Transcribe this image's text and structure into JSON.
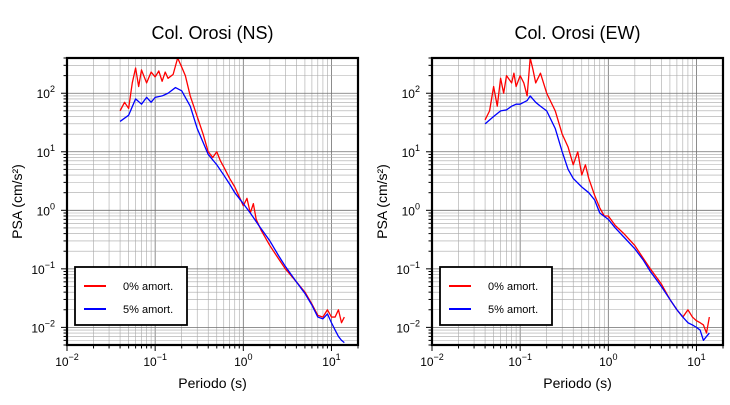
{
  "chart_data": [
    {
      "type": "line",
      "title": "Col. Orosi (NS)",
      "xlabel": "Periodo (s)",
      "ylabel": "PSA (cm/s²)",
      "x_scale": "log",
      "y_scale": "log",
      "xlim": [
        0.01,
        20
      ],
      "ylim": [
        0.005,
        400
      ],
      "x_ticks": [
        {
          "value": 0.01,
          "base": "10",
          "exp": "−2"
        },
        {
          "value": 0.1,
          "base": "10",
          "exp": "−1"
        },
        {
          "value": 1,
          "base": "10",
          "exp": "0"
        },
        {
          "value": 10,
          "base": "10",
          "exp": "1"
        }
      ],
      "y_ticks": [
        {
          "value": 0.01,
          "base": "10",
          "exp": "−2"
        },
        {
          "value": 0.1,
          "base": "10",
          "exp": "−1"
        },
        {
          "value": 1,
          "base": "10",
          "exp": "0"
        },
        {
          "value": 10,
          "base": "10",
          "exp": "1"
        },
        {
          "value": 100,
          "base": "10",
          "exp": "2"
        }
      ],
      "grid": true,
      "legend_position": "bottom-left",
      "series": [
        {
          "name": "0% amort.",
          "color": "#ff0000",
          "points": [
            [
              0.04,
              50
            ],
            [
              0.045,
              70
            ],
            [
              0.05,
              55
            ],
            [
              0.055,
              150
            ],
            [
              0.06,
              270
            ],
            [
              0.065,
              130
            ],
            [
              0.07,
              250
            ],
            [
              0.08,
              150
            ],
            [
              0.09,
              230
            ],
            [
              0.1,
              190
            ],
            [
              0.11,
              240
            ],
            [
              0.12,
              160
            ],
            [
              0.13,
              230
            ],
            [
              0.14,
              180
            ],
            [
              0.16,
              210
            ],
            [
              0.18,
              400
            ],
            [
              0.2,
              280
            ],
            [
              0.22,
              200
            ],
            [
              0.25,
              90
            ],
            [
              0.3,
              40
            ],
            [
              0.35,
              20
            ],
            [
              0.4,
              10
            ],
            [
              0.45,
              8
            ],
            [
              0.5,
              10
            ],
            [
              0.55,
              7
            ],
            [
              0.6,
              5.5
            ],
            [
              0.7,
              3.5
            ],
            [
              0.8,
              2.5
            ],
            [
              0.9,
              1.7
            ],
            [
              1.0,
              1.2
            ],
            [
              1.1,
              1.6
            ],
            [
              1.2,
              0.9
            ],
            [
              1.3,
              1.3
            ],
            [
              1.4,
              0.7
            ],
            [
              1.6,
              0.45
            ],
            [
              2.0,
              0.25
            ],
            [
              2.5,
              0.15
            ],
            [
              3.0,
              0.1
            ],
            [
              4.0,
              0.06
            ],
            [
              5.0,
              0.04
            ],
            [
              6.0,
              0.025
            ],
            [
              7.0,
              0.016
            ],
            [
              8.0,
              0.015
            ],
            [
              9.0,
              0.02
            ],
            [
              10,
              0.015
            ],
            [
              11,
              0.015
            ],
            [
              12,
              0.02
            ],
            [
              13,
              0.012
            ],
            [
              14,
              0.015
            ]
          ]
        },
        {
          "name": "5% amort.",
          "color": "#0000ff",
          "points": [
            [
              0.04,
              33
            ],
            [
              0.05,
              42
            ],
            [
              0.06,
              80
            ],
            [
              0.07,
              65
            ],
            [
              0.08,
              85
            ],
            [
              0.09,
              70
            ],
            [
              0.1,
              85
            ],
            [
              0.12,
              90
            ],
            [
              0.14,
              100
            ],
            [
              0.17,
              125
            ],
            [
              0.2,
              110
            ],
            [
              0.25,
              60
            ],
            [
              0.3,
              25
            ],
            [
              0.4,
              9
            ],
            [
              0.5,
              6
            ],
            [
              0.6,
              4
            ],
            [
              0.7,
              2.8
            ],
            [
              0.8,
              2
            ],
            [
              1.0,
              1.3
            ],
            [
              1.2,
              0.9
            ],
            [
              1.5,
              0.55
            ],
            [
              2.0,
              0.3
            ],
            [
              2.5,
              0.17
            ],
            [
              3.0,
              0.11
            ],
            [
              4.0,
              0.06
            ],
            [
              5.0,
              0.038
            ],
            [
              6.0,
              0.024
            ],
            [
              7.0,
              0.015
            ],
            [
              8.0,
              0.014
            ],
            [
              9.0,
              0.017
            ],
            [
              10,
              0.012
            ],
            [
              11,
              0.009
            ],
            [
              12,
              0.007
            ],
            [
              13,
              0.006
            ],
            [
              14,
              0.0055
            ]
          ]
        }
      ]
    },
    {
      "type": "line",
      "title": "Col. Orosi (EW)",
      "xlabel": "Periodo (s)",
      "ylabel": "PSA (cm/s²)",
      "x_scale": "log",
      "y_scale": "log",
      "xlim": [
        0.01,
        20
      ],
      "ylim": [
        0.005,
        400
      ],
      "x_ticks": [
        {
          "value": 0.01,
          "base": "10",
          "exp": "−2"
        },
        {
          "value": 0.1,
          "base": "10",
          "exp": "−1"
        },
        {
          "value": 1,
          "base": "10",
          "exp": "0"
        },
        {
          "value": 10,
          "base": "10",
          "exp": "1"
        }
      ],
      "y_ticks": [
        {
          "value": 0.01,
          "base": "10",
          "exp": "−2"
        },
        {
          "value": 0.1,
          "base": "10",
          "exp": "−1"
        },
        {
          "value": 1,
          "base": "10",
          "exp": "0"
        },
        {
          "value": 10,
          "base": "10",
          "exp": "1"
        },
        {
          "value": 100,
          "base": "10",
          "exp": "2"
        }
      ],
      "grid": true,
      "legend_position": "bottom-left",
      "series": [
        {
          "name": "0% amort.",
          "color": "#ff0000",
          "points": [
            [
              0.04,
              35
            ],
            [
              0.045,
              50
            ],
            [
              0.05,
              130
            ],
            [
              0.055,
              60
            ],
            [
              0.06,
              180
            ],
            [
              0.065,
              100
            ],
            [
              0.07,
              200
            ],
            [
              0.08,
              150
            ],
            [
              0.085,
              220
            ],
            [
              0.09,
              130
            ],
            [
              0.1,
              200
            ],
            [
              0.11,
              150
            ],
            [
              0.12,
              90
            ],
            [
              0.13,
              400
            ],
            [
              0.14,
              250
            ],
            [
              0.15,
              150
            ],
            [
              0.17,
              220
            ],
            [
              0.2,
              100
            ],
            [
              0.25,
              50
            ],
            [
              0.3,
              20
            ],
            [
              0.35,
              12
            ],
            [
              0.4,
              6
            ],
            [
              0.45,
              10
            ],
            [
              0.5,
              4
            ],
            [
              0.55,
              6
            ],
            [
              0.6,
              3.5
            ],
            [
              0.7,
              1.8
            ],
            [
              0.8,
              1.1
            ],
            [
              0.9,
              0.8
            ],
            [
              1.0,
              0.8
            ],
            [
              1.2,
              0.55
            ],
            [
              1.5,
              0.4
            ],
            [
              2.0,
              0.25
            ],
            [
              2.5,
              0.15
            ],
            [
              3.0,
              0.1
            ],
            [
              4.0,
              0.055
            ],
            [
              5.0,
              0.03
            ],
            [
              6.0,
              0.02
            ],
            [
              7.0,
              0.015
            ],
            [
              8.0,
              0.02
            ],
            [
              9.0,
              0.015
            ],
            [
              10,
              0.013
            ],
            [
              11,
              0.012
            ],
            [
              12,
              0.011
            ],
            [
              13,
              0.008
            ],
            [
              14,
              0.015
            ]
          ]
        },
        {
          "name": "5% amort.",
          "color": "#0000ff",
          "points": [
            [
              0.04,
              30
            ],
            [
              0.05,
              40
            ],
            [
              0.06,
              50
            ],
            [
              0.07,
              52
            ],
            [
              0.08,
              60
            ],
            [
              0.09,
              65
            ],
            [
              0.1,
              65
            ],
            [
              0.12,
              75
            ],
            [
              0.13,
              90
            ],
            [
              0.15,
              70
            ],
            [
              0.17,
              60
            ],
            [
              0.2,
              50
            ],
            [
              0.25,
              25
            ],
            [
              0.3,
              10
            ],
            [
              0.35,
              5
            ],
            [
              0.4,
              3.5
            ],
            [
              0.5,
              2.5
            ],
            [
              0.6,
              2
            ],
            [
              0.7,
              1.5
            ],
            [
              0.8,
              0.9
            ],
            [
              1.0,
              0.7
            ],
            [
              1.2,
              0.5
            ],
            [
              1.5,
              0.35
            ],
            [
              2.0,
              0.22
            ],
            [
              2.5,
              0.14
            ],
            [
              3.0,
              0.09
            ],
            [
              4.0,
              0.05
            ],
            [
              5.0,
              0.03
            ],
            [
              6.0,
              0.02
            ],
            [
              7.0,
              0.015
            ],
            [
              8.0,
              0.012
            ],
            [
              9.0,
              0.011
            ],
            [
              10,
              0.01
            ],
            [
              11,
              0.009
            ],
            [
              12,
              0.006
            ],
            [
              13,
              0.007
            ],
            [
              14,
              0.008
            ]
          ]
        }
      ]
    }
  ]
}
